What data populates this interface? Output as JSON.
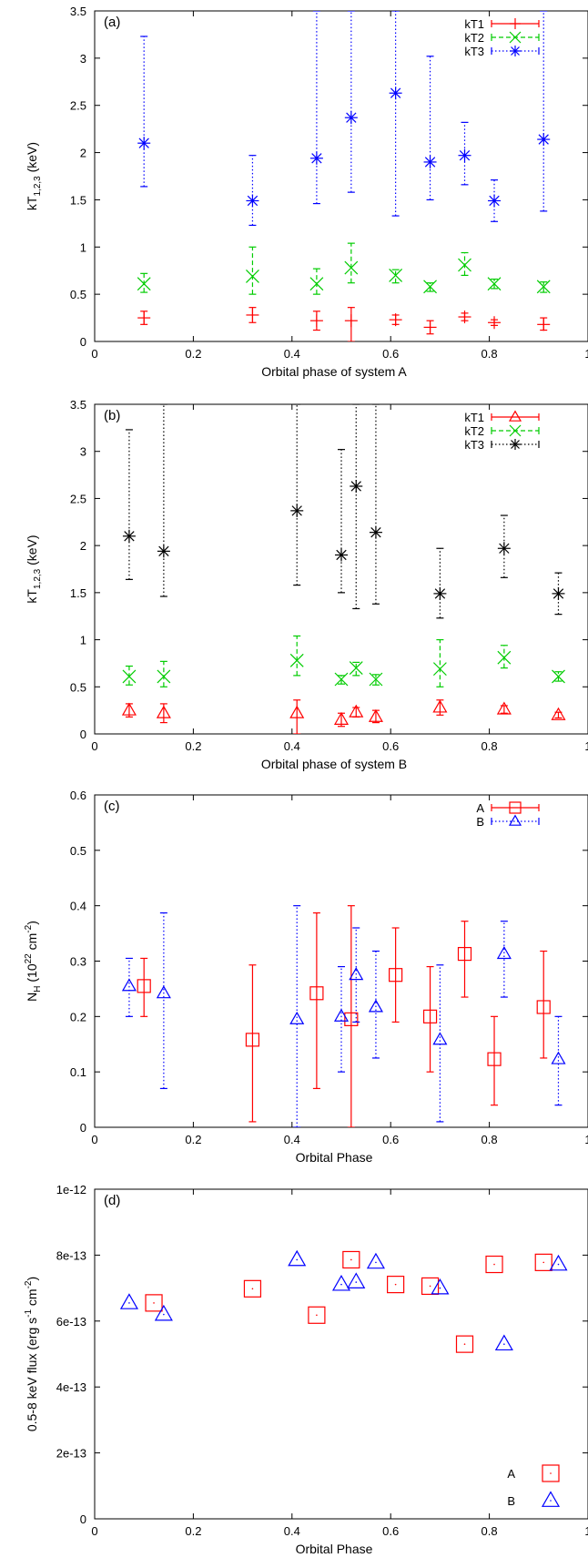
{
  "colors": {
    "red": "#ff0000",
    "green": "#00cc00",
    "blue": "#0000ff",
    "black": "#000000"
  },
  "chart_data": [
    {
      "type": "scatter",
      "panel_label": "(a)",
      "xlabel": "Orbital phase of system A",
      "ylabel": "kT",
      "ylabel_sub": "1,2,3",
      "ylabel_unit": " (keV)",
      "xlim": [
        0,
        1
      ],
      "ylim": [
        0,
        3.5
      ],
      "xticks": [
        "0",
        "0.2",
        "0.4",
        "0.6",
        "0.8",
        "1"
      ],
      "yticks": [
        "0",
        "0.5",
        "1",
        "1.5",
        "2",
        "2.5",
        "3",
        "3.5"
      ],
      "legend": "top-right",
      "series": [
        {
          "name": "kT1",
          "color": "#ff0000",
          "marker": "plus",
          "dash": "solid",
          "x": [
            0.1,
            0.32,
            0.45,
            0.52,
            0.61,
            0.68,
            0.75,
            0.81,
            0.91
          ],
          "y": [
            0.25,
            0.28,
            0.22,
            0.22,
            0.23,
            0.15,
            0.26,
            0.2,
            0.18
          ],
          "ylow": [
            0.18,
            0.2,
            0.12,
            0.0,
            0.18,
            0.08,
            0.22,
            0.17,
            0.12
          ],
          "yhigh": [
            0.32,
            0.36,
            0.32,
            0.36,
            0.28,
            0.22,
            0.3,
            0.23,
            0.25
          ]
        },
        {
          "name": "kT2",
          "color": "#00cc00",
          "marker": "cross",
          "dash": "dashed",
          "x": [
            0.1,
            0.32,
            0.45,
            0.52,
            0.61,
            0.68,
            0.75,
            0.81,
            0.91
          ],
          "y": [
            0.61,
            0.69,
            0.61,
            0.78,
            0.7,
            0.58,
            0.81,
            0.61,
            0.58
          ],
          "ylow": [
            0.52,
            0.5,
            0.5,
            0.62,
            0.62,
            0.53,
            0.7,
            0.56,
            0.52
          ],
          "yhigh": [
            0.72,
            1.0,
            0.77,
            1.04,
            0.76,
            0.62,
            0.94,
            0.66,
            0.63
          ]
        },
        {
          "name": "kT3",
          "color": "#0000ff",
          "marker": "star",
          "dash": "dotted",
          "x": [
            0.1,
            0.32,
            0.45,
            0.52,
            0.61,
            0.68,
            0.75,
            0.81,
            0.91
          ],
          "y": [
            2.1,
            1.49,
            1.94,
            2.37,
            2.63,
            1.9,
            1.97,
            1.49,
            2.14
          ],
          "ylow": [
            1.64,
            1.23,
            1.46,
            1.58,
            1.33,
            1.5,
            1.66,
            1.27,
            1.38
          ],
          "yhigh": [
            3.23,
            1.97,
            3.5,
            3.5,
            3.5,
            3.02,
            2.32,
            1.71,
            3.5
          ]
        }
      ]
    },
    {
      "type": "scatter",
      "panel_label": "(b)",
      "xlabel": "Orbital phase of system B",
      "ylabel": "kT",
      "ylabel_sub": "1,2,3",
      "ylabel_unit": " (keV)",
      "xlim": [
        0,
        1
      ],
      "ylim": [
        0,
        3.5
      ],
      "xticks": [
        "0",
        "0.2",
        "0.4",
        "0.6",
        "0.8",
        "1"
      ],
      "yticks": [
        "0",
        "0.5",
        "1",
        "1.5",
        "2",
        "2.5",
        "3",
        "3.5"
      ],
      "legend": "top-right",
      "series": [
        {
          "name": "kT1",
          "color": "#ff0000",
          "marker": "triangle",
          "dash": "solid",
          "x": [
            0.07,
            0.14,
            0.41,
            0.5,
            0.53,
            0.57,
            0.7,
            0.83,
            0.94
          ],
          "y": [
            0.25,
            0.22,
            0.22,
            0.15,
            0.23,
            0.18,
            0.28,
            0.26,
            0.2
          ],
          "ylow": [
            0.18,
            0.12,
            0.0,
            0.08,
            0.18,
            0.12,
            0.2,
            0.22,
            0.17
          ],
          "yhigh": [
            0.32,
            0.32,
            0.36,
            0.22,
            0.28,
            0.25,
            0.36,
            0.3,
            0.23
          ]
        },
        {
          "name": "kT2",
          "color": "#00cc00",
          "marker": "cross",
          "dash": "dashed",
          "x": [
            0.07,
            0.14,
            0.41,
            0.5,
            0.53,
            0.57,
            0.7,
            0.83,
            0.94
          ],
          "y": [
            0.61,
            0.61,
            0.78,
            0.58,
            0.7,
            0.58,
            0.69,
            0.81,
            0.61
          ],
          "ylow": [
            0.52,
            0.5,
            0.62,
            0.53,
            0.62,
            0.52,
            0.5,
            0.7,
            0.56
          ],
          "yhigh": [
            0.72,
            0.77,
            1.04,
            0.62,
            0.76,
            0.63,
            1.0,
            0.94,
            0.66
          ]
        },
        {
          "name": "kT3",
          "color": "#000000",
          "marker": "star",
          "dash": "dotted",
          "x": [
            0.07,
            0.14,
            0.41,
            0.5,
            0.53,
            0.57,
            0.7,
            0.83,
            0.94
          ],
          "y": [
            2.1,
            1.94,
            2.37,
            1.9,
            2.63,
            2.14,
            1.49,
            1.97,
            1.49
          ],
          "ylow": [
            1.64,
            1.46,
            1.58,
            1.5,
            1.33,
            1.38,
            1.23,
            1.66,
            1.27
          ],
          "yhigh": [
            3.23,
            3.5,
            3.5,
            3.02,
            3.5,
            3.5,
            1.97,
            2.32,
            1.71
          ]
        }
      ]
    },
    {
      "type": "scatter",
      "panel_label": "(c)",
      "xlabel": "Orbital Phase",
      "ylabel": "N",
      "ylabel_sub": "H",
      "ylabel_unit": " (10",
      "ylabel_sup1": "22",
      "ylabel_mid": " cm",
      "ylabel_sup2": "-2",
      "ylabel_end": ")",
      "xlim": [
        0,
        1
      ],
      "ylim": [
        0,
        0.6
      ],
      "xticks": [
        "0",
        "0.2",
        "0.4",
        "0.6",
        "0.8",
        "1"
      ],
      "yticks": [
        "0",
        "0.1",
        "0.2",
        "0.3",
        "0.4",
        "0.5",
        "0.6"
      ],
      "legend": "top-right",
      "series": [
        {
          "name": "A",
          "color": "#ff0000",
          "marker": "square",
          "dash": "solid",
          "x": [
            0.1,
            0.32,
            0.45,
            0.52,
            0.61,
            0.68,
            0.75,
            0.81,
            0.91
          ],
          "y": [
            0.255,
            0.158,
            0.242,
            0.195,
            0.275,
            0.2,
            0.313,
            0.123,
            0.217
          ],
          "ylow": [
            0.2,
            0.01,
            0.07,
            0.0,
            0.19,
            0.1,
            0.235,
            0.04,
            0.125
          ],
          "yhigh": [
            0.305,
            0.293,
            0.387,
            0.4,
            0.36,
            0.29,
            0.372,
            0.2,
            0.318
          ]
        },
        {
          "name": "B",
          "color": "#0000ff",
          "marker": "triangle",
          "dash": "dotted",
          "x": [
            0.07,
            0.14,
            0.41,
            0.5,
            0.53,
            0.57,
            0.7,
            0.83,
            0.94
          ],
          "y": [
            0.255,
            0.242,
            0.195,
            0.2,
            0.275,
            0.217,
            0.158,
            0.313,
            0.123
          ],
          "ylow": [
            0.2,
            0.07,
            0.0,
            0.1,
            0.19,
            0.125,
            0.01,
            0.235,
            0.04
          ],
          "yhigh": [
            0.305,
            0.387,
            0.4,
            0.29,
            0.36,
            0.318,
            0.293,
            0.372,
            0.2
          ]
        }
      ]
    },
    {
      "type": "scatter",
      "panel_label": "(d)",
      "xlabel": "Orbital Phase",
      "ylabel": "0.5-8 keV flux (erg s",
      "ylabel_sup1": "-1",
      "ylabel_mid": " cm",
      "ylabel_sup2": "-2",
      "ylabel_end": ")",
      "xlim": [
        0,
        1
      ],
      "ylim": [
        0,
        1e-12
      ],
      "xticks": [
        "0",
        "0.2",
        "0.4",
        "0.6",
        "0.8",
        "1"
      ],
      "yticks": [
        "0",
        "2e-13",
        "4e-13",
        "6e-13",
        "8e-13",
        "1e-12"
      ],
      "legend": "bottom-right",
      "series": [
        {
          "name": "A",
          "color": "#ff0000",
          "marker": "square",
          "x": [
            0.12,
            0.32,
            0.45,
            0.52,
            0.61,
            0.68,
            0.75,
            0.81,
            0.91
          ],
          "y": [
            6.55e-13,
            6.98e-13,
            6.18e-13,
            7.86e-13,
            7.11e-13,
            7.06e-13,
            5.3e-13,
            7.72e-13,
            7.78e-13
          ]
        },
        {
          "name": "B",
          "color": "#0000ff",
          "marker": "triangle",
          "x": [
            0.07,
            0.14,
            0.41,
            0.5,
            0.53,
            0.57,
            0.7,
            0.83,
            0.94
          ],
          "y": [
            6.55e-13,
            6.2e-13,
            7.86e-13,
            7.11e-13,
            7.18e-13,
            7.78e-13,
            7e-13,
            5.3e-13,
            7.72e-13
          ]
        }
      ]
    }
  ]
}
